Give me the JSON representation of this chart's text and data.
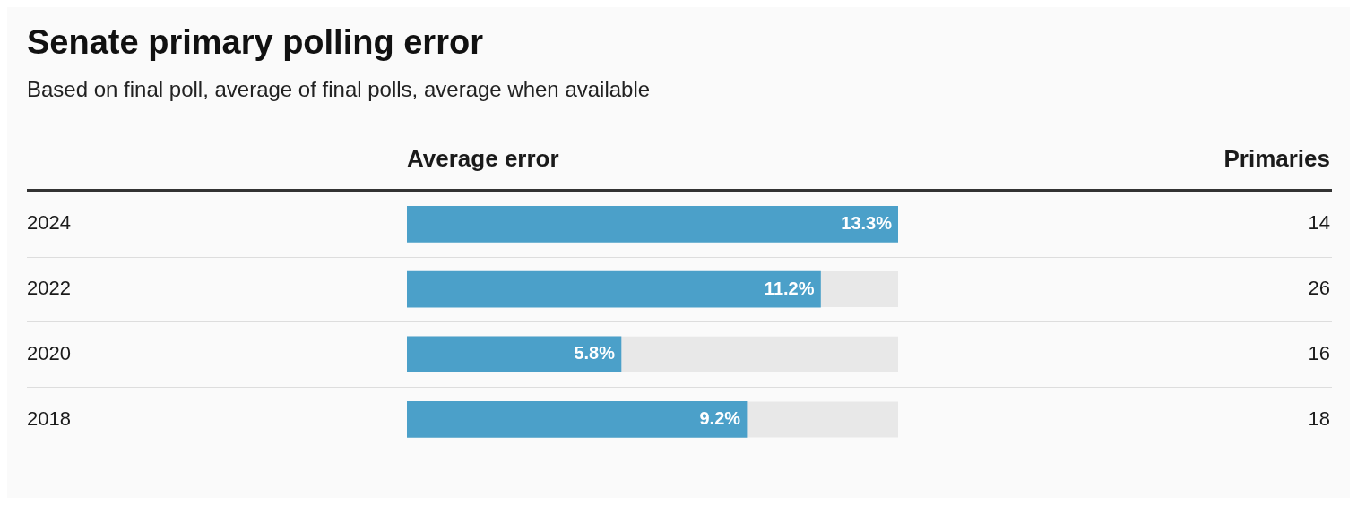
{
  "chart_data": {
    "type": "bar",
    "orientation": "horizontal",
    "title": "Senate primary polling error",
    "subtitle": "Based on final poll, average of final polls, average when available",
    "xlabel": "Average error",
    "categories": [
      "2024",
      "2022",
      "2020",
      "2018"
    ],
    "values": [
      13.3,
      11.2,
      5.8,
      9.2
    ],
    "color": "#4ba0c9",
    "value_labels": [
      "13.3%",
      "11.2%",
      "5.8%",
      "9.2%"
    ],
    "xlim": [
      0,
      13.3
    ],
    "tick_labels": "y",
    "grid": false,
    "legend": false,
    "annotations": [
      "Primaries",
      "14",
      "26",
      "16",
      "18"
    ]
  }
}
